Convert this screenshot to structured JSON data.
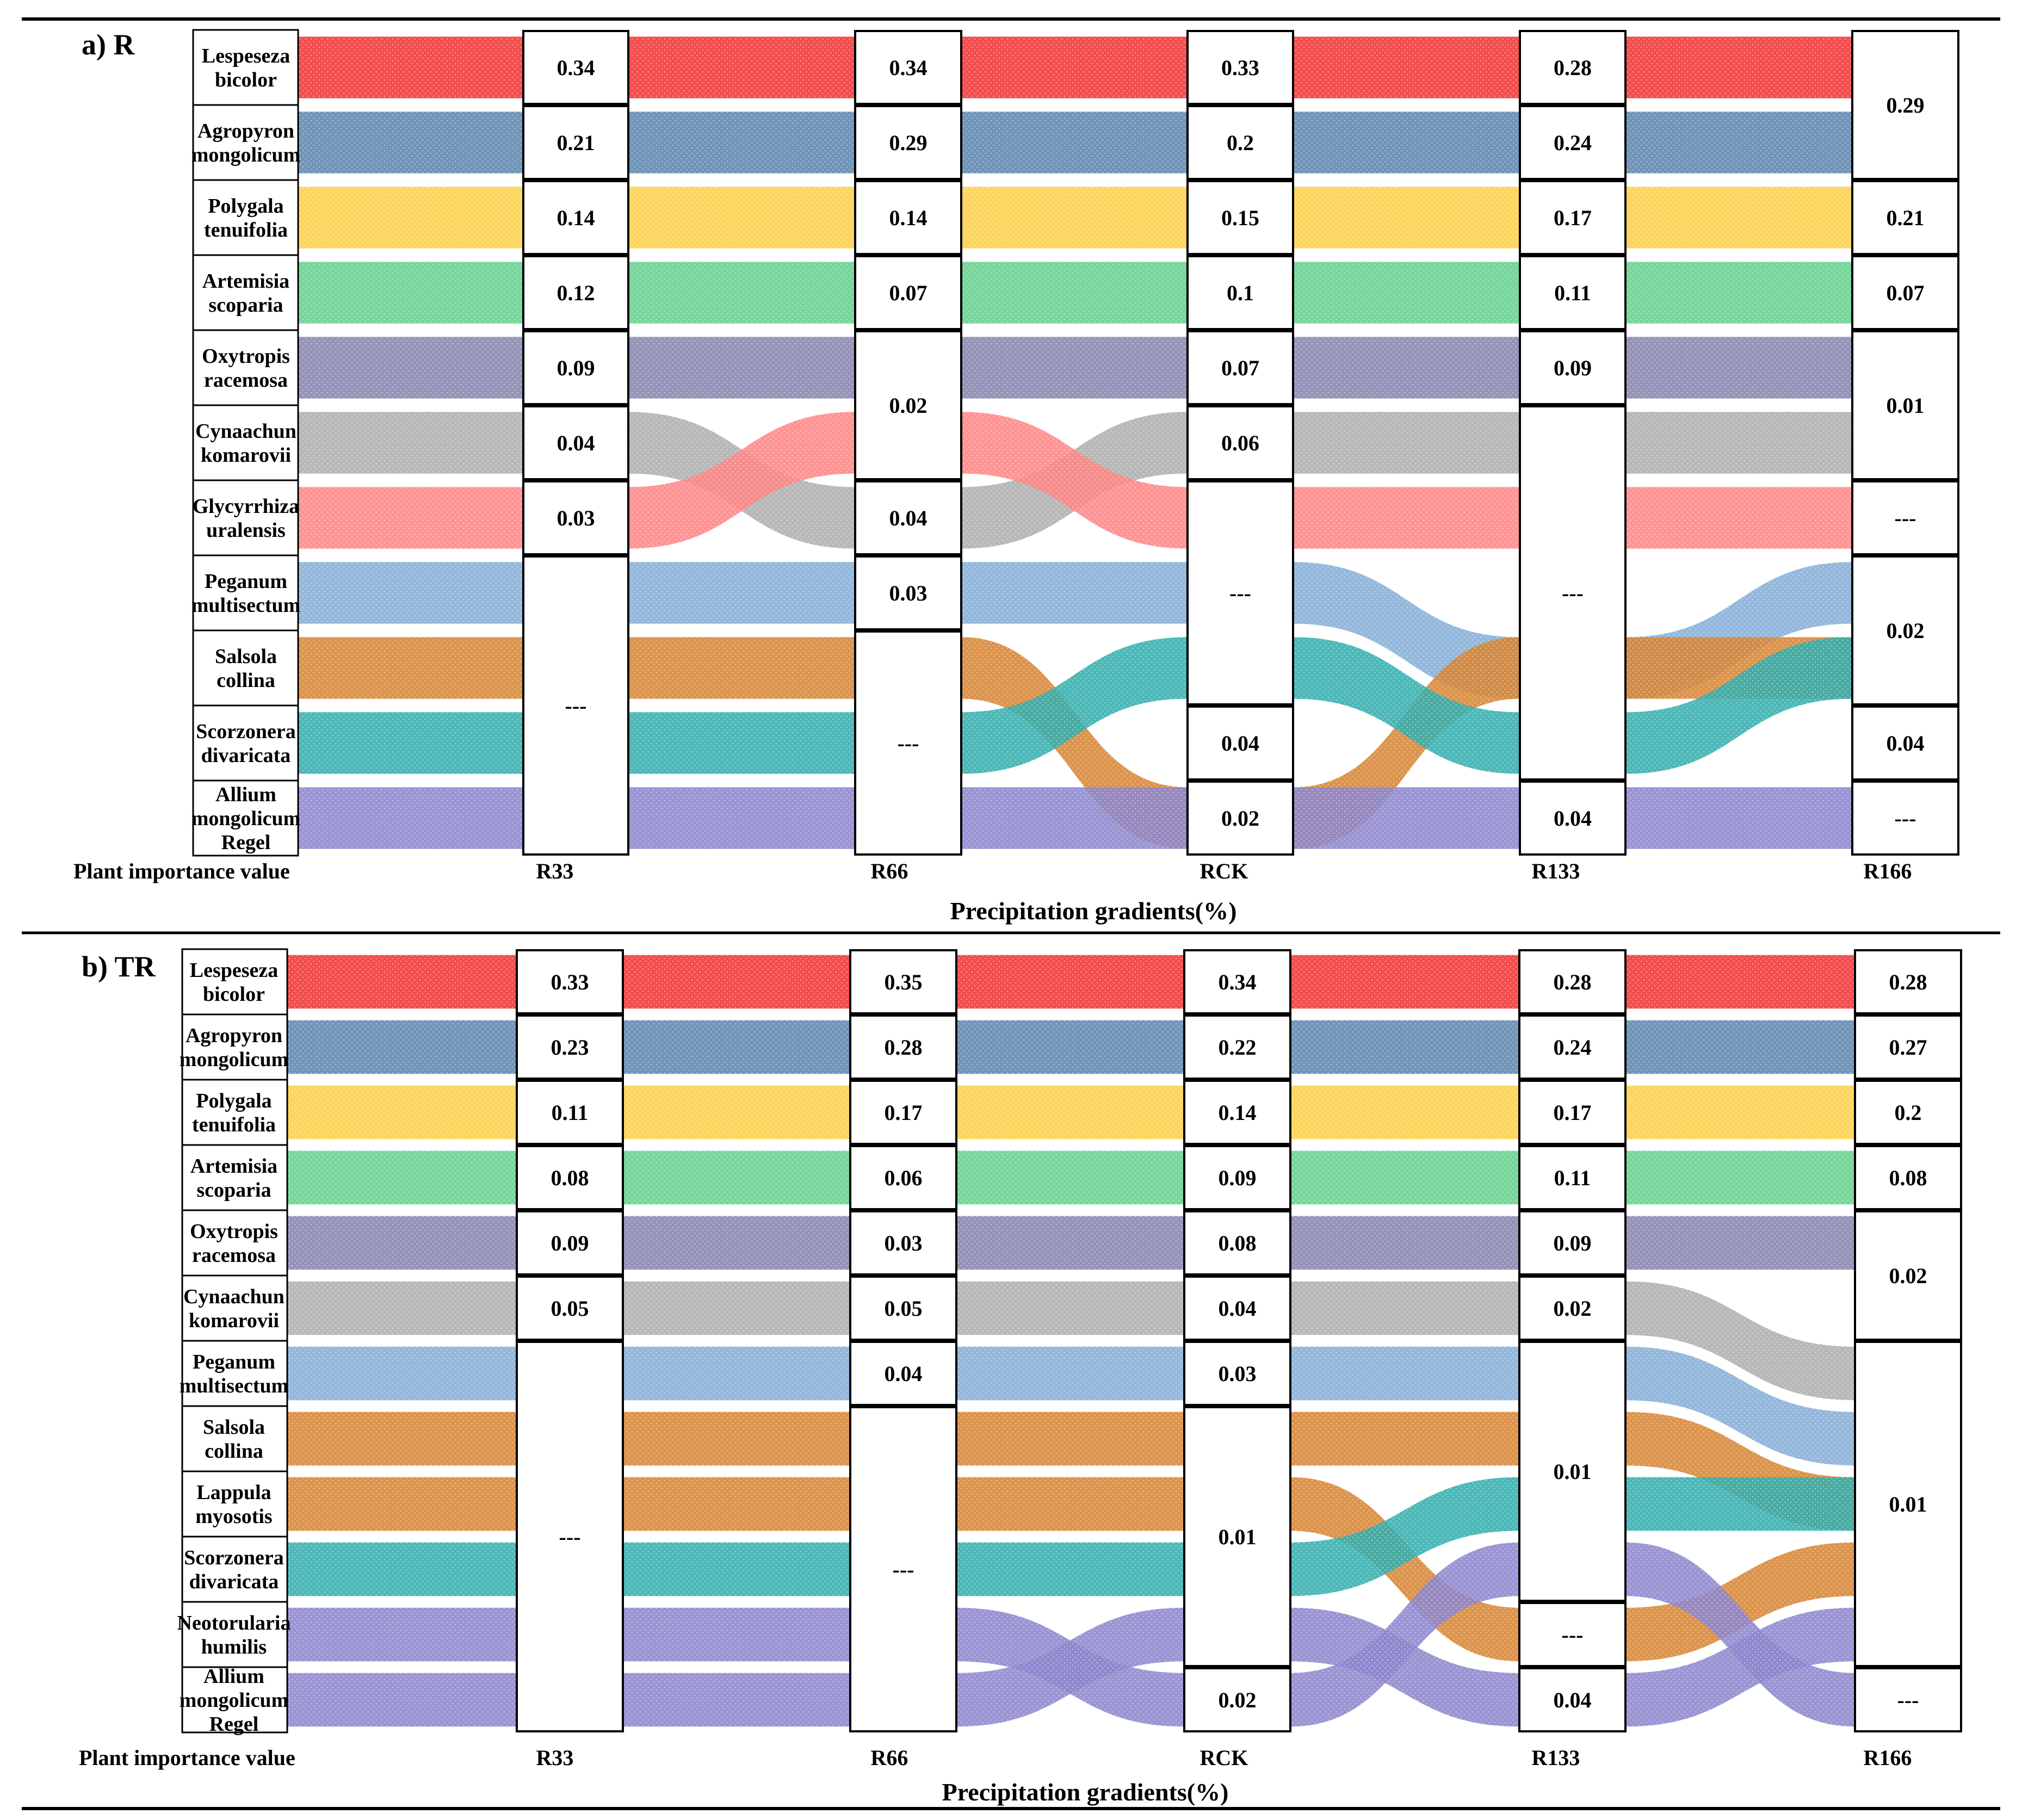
{
  "gradients": [
    "R33",
    "R66",
    "RCK",
    "R133",
    "R166"
  ],
  "row_label": "Plant importance value",
  "x_title": "Precipitation gradients(%)",
  "colors": {
    "Lespeseza bicolor": "#ee0000",
    "Agropyron mongolicum": "#33679a",
    "Polygala tenuifolia": "#fcc317",
    "Artemisia scoparia": "#3cc46f",
    "Oxytropis racemosa": "#66669a",
    "Cynaachun komarovii": "#999999",
    "Glycyrrhiza uralensis": "#ff6666",
    "Peganum multisectum": "#6699cc",
    "Salsola collina": "#cc6600",
    "Scorzonera divaricata": "#009999",
    "Allium mongolicum Regel": "#6f67bf",
    "Lappula myosotis": "#cc6600",
    "Neotorularia humilis": "#6f67bf"
  },
  "panels": [
    {
      "label": "a) R",
      "species": [
        {
          "line1": "Lespeseza",
          "line2": "bicolor",
          "line3": ""
        },
        {
          "line1": "Agropyron",
          "line2": "mongolicum",
          "line3": ""
        },
        {
          "line1": "Polygala",
          "line2": "tenuifolia",
          "line3": ""
        },
        {
          "line1": "Artemisia",
          "line2": "scoparia",
          "line3": ""
        },
        {
          "line1": "Oxytropis",
          "line2": "racemosa",
          "line3": ""
        },
        {
          "line1": "Cynaachun",
          "line2": "komarovii",
          "line3": ""
        },
        {
          "line1": "Glycyrrhiza",
          "line2": "uralensis",
          "line3": ""
        },
        {
          "line1": "Peganum",
          "line2": "multisectum",
          "line3": ""
        },
        {
          "line1": "Salsola",
          "line2": "collina",
          "line3": ""
        },
        {
          "line1": "Scorzonera",
          "line2": "divaricata",
          "line3": ""
        },
        {
          "line1": "Allium",
          "line2": "mongolicum",
          "line3": "Regel"
        }
      ],
      "columns": [
        {
          "cells": [
            {
              "text": "0.34",
              "span": 1
            },
            {
              "text": "0.21",
              "span": 1
            },
            {
              "text": "0.14",
              "span": 1
            },
            {
              "text": "0.12",
              "span": 1
            },
            {
              "text": "0.09",
              "span": 1
            },
            {
              "text": "0.04",
              "span": 1
            },
            {
              "text": "0.03",
              "span": 1
            },
            {
              "text": "---",
              "span": 4
            }
          ]
        },
        {
          "cells": [
            {
              "text": "0.34",
              "span": 1
            },
            {
              "text": "0.29",
              "span": 1
            },
            {
              "text": "0.14",
              "span": 1
            },
            {
              "text": "0.07",
              "span": 1
            },
            {
              "text": "0.02",
              "span": 2
            },
            {
              "text": "0.04",
              "span": 1
            },
            {
              "text": "0.03",
              "span": 1
            },
            {
              "text": "---",
              "span": 3
            }
          ]
        },
        {
          "cells": [
            {
              "text": "0.33",
              "span": 1
            },
            {
              "text": "0.2",
              "span": 1
            },
            {
              "text": "0.15",
              "span": 1
            },
            {
              "text": "0.1",
              "span": 1
            },
            {
              "text": "0.07",
              "span": 1
            },
            {
              "text": "0.06",
              "span": 1
            },
            {
              "text": "---",
              "span": 3
            },
            {
              "text": "0.04",
              "span": 1
            },
            {
              "text": "0.02",
              "span": 1
            }
          ]
        },
        {
          "cells": [
            {
              "text": "0.28",
              "span": 1
            },
            {
              "text": "0.24",
              "span": 1
            },
            {
              "text": "0.17",
              "span": 1
            },
            {
              "text": "0.11",
              "span": 1
            },
            {
              "text": "0.09",
              "span": 1
            },
            {
              "text": "---",
              "span": 5
            },
            {
              "text": "0.04",
              "span": 1
            }
          ]
        },
        {
          "cells": [
            {
              "text": "0.29",
              "span": 2
            },
            {
              "text": "0.21",
              "span": 1
            },
            {
              "text": "0.07",
              "span": 1
            },
            {
              "text": "0.01",
              "span": 2
            },
            {
              "text": "---",
              "span": 1
            },
            {
              "text": "0.02",
              "span": 2
            },
            {
              "text": "0.04",
              "span": 1
            },
            {
              "text": "---",
              "span": 1
            }
          ]
        }
      ]
    },
    {
      "label": "b) TR",
      "species": [
        {
          "line1": "Lespeseza",
          "line2": "bicolor",
          "line3": ""
        },
        {
          "line1": "Agropyron",
          "line2": "mongolicum",
          "line3": ""
        },
        {
          "line1": "Polygala",
          "line2": "tenuifolia",
          "line3": ""
        },
        {
          "line1": "Artemisia",
          "line2": "scoparia",
          "line3": ""
        },
        {
          "line1": "Oxytropis",
          "line2": "racemosa",
          "line3": ""
        },
        {
          "line1": "Cynaachun",
          "line2": "komarovii",
          "line3": ""
        },
        {
          "line1": "Peganum",
          "line2": "multisectum",
          "line3": ""
        },
        {
          "line1": "Salsola",
          "line2": "collina",
          "line3": ""
        },
        {
          "line1": "Lappula",
          "line2": "myosotis",
          "line3": ""
        },
        {
          "line1": "Scorzonera",
          "line2": "divaricata",
          "line3": ""
        },
        {
          "line1": "Neotorularia",
          "line2": "humilis",
          "line3": ""
        },
        {
          "line1": "Allium",
          "line2": "mongolicum",
          "line3": "Regel"
        }
      ],
      "columns": [
        {
          "cells": [
            {
              "text": "0.33",
              "span": 1
            },
            {
              "text": "0.23",
              "span": 1
            },
            {
              "text": "0.11",
              "span": 1
            },
            {
              "text": "0.08",
              "span": 1
            },
            {
              "text": "0.09",
              "span": 1
            },
            {
              "text": "0.05",
              "span": 1
            },
            {
              "text": "---",
              "span": 6
            }
          ]
        },
        {
          "cells": [
            {
              "text": "0.35",
              "span": 1
            },
            {
              "text": "0.28",
              "span": 1
            },
            {
              "text": "0.17",
              "span": 1
            },
            {
              "text": "0.06",
              "span": 1
            },
            {
              "text": "0.03",
              "span": 1
            },
            {
              "text": "0.05",
              "span": 1
            },
            {
              "text": "0.04",
              "span": 1
            },
            {
              "text": "---",
              "span": 5
            }
          ]
        },
        {
          "cells": [
            {
              "text": "0.34",
              "span": 1
            },
            {
              "text": "0.22",
              "span": 1
            },
            {
              "text": "0.14",
              "span": 1
            },
            {
              "text": "0.09",
              "span": 1
            },
            {
              "text": "0.08",
              "span": 1
            },
            {
              "text": "0.04",
              "span": 1
            },
            {
              "text": "0.03",
              "span": 1
            },
            {
              "text": "0.01",
              "span": 4
            },
            {
              "text": "0.02",
              "span": 1
            }
          ]
        },
        {
          "cells": [
            {
              "text": "0.28",
              "span": 1
            },
            {
              "text": "0.24",
              "span": 1
            },
            {
              "text": "0.17",
              "span": 1
            },
            {
              "text": "0.11",
              "span": 1
            },
            {
              "text": "0.09",
              "span": 1
            },
            {
              "text": "0.02",
              "span": 1
            },
            {
              "text": "0.01",
              "span": 4
            },
            {
              "text": "---",
              "span": 1
            },
            {
              "text": "0.04",
              "span": 1
            }
          ]
        },
        {
          "cells": [
            {
              "text": "0.28",
              "span": 1
            },
            {
              "text": "0.27",
              "span": 1
            },
            {
              "text": "0.2",
              "span": 1
            },
            {
              "text": "0.08",
              "span": 1
            },
            {
              "text": "0.02",
              "span": 2
            },
            {
              "text": "0.01",
              "span": 5
            },
            {
              "text": "---",
              "span": 1
            }
          ]
        }
      ]
    }
  ],
  "flows_a": [
    {
      "species": "Lespeseza bicolor",
      "path": [
        0,
        0,
        0,
        0,
        0
      ]
    },
    {
      "species": "Agropyron mongolicum",
      "path": [
        1,
        1,
        1,
        1,
        1
      ]
    },
    {
      "species": "Polygala tenuifolia",
      "path": [
        2,
        2,
        2,
        2,
        2
      ]
    },
    {
      "species": "Artemisia scoparia",
      "path": [
        3,
        3,
        3,
        3,
        3
      ]
    },
    {
      "species": "Oxytropis racemosa",
      "path": [
        4,
        4,
        4,
        4,
        4
      ]
    },
    {
      "species": "Cynaachun komarovii",
      "path": [
        5,
        6,
        5,
        5,
        5
      ]
    },
    {
      "species": "Glycyrrhiza uralensis",
      "path": [
        6,
        5,
        6,
        6,
        6
      ]
    },
    {
      "species": "Peganum multisectum",
      "path": [
        7,
        7,
        7,
        8,
        7
      ]
    },
    {
      "species": "Salsola collina",
      "path": [
        8,
        8,
        10,
        8,
        8
      ]
    },
    {
      "species": "Scorzonera divaricata",
      "path": [
        9,
        9,
        8,
        9,
        8
      ]
    },
    {
      "species": "Allium mongolicum Regel",
      "path": [
        10,
        10,
        10,
        10,
        10
      ]
    }
  ],
  "flows_b": [
    {
      "species": "Lespeseza bicolor",
      "path": [
        0,
        0,
        0,
        0,
        0
      ]
    },
    {
      "species": "Agropyron mongolicum",
      "path": [
        1,
        1,
        1,
        1,
        1
      ]
    },
    {
      "species": "Polygala tenuifolia",
      "path": [
        2,
        2,
        2,
        2,
        2
      ]
    },
    {
      "species": "Artemisia scoparia",
      "path": [
        3,
        3,
        3,
        3,
        3
      ]
    },
    {
      "species": "Oxytropis racemosa",
      "path": [
        4,
        4,
        4,
        4,
        4
      ]
    },
    {
      "species": "Cynaachun komarovii",
      "path": [
        5,
        5,
        5,
        5,
        6
      ]
    },
    {
      "species": "Peganum multisectum",
      "path": [
        6,
        6,
        6,
        6,
        7
      ]
    },
    {
      "species": "Salsola collina",
      "path": [
        7,
        7,
        7,
        7,
        8
      ]
    },
    {
      "species": "Lappula myosotis",
      "path": [
        8,
        8,
        8,
        10,
        9
      ]
    },
    {
      "species": "Scorzonera divaricata",
      "path": [
        9,
        9,
        9,
        8,
        8
      ]
    },
    {
      "species": "Neotorularia humilis",
      "path": [
        10,
        10,
        11,
        9,
        11
      ]
    },
    {
      "species": "Allium mongolicum Regel",
      "path": [
        11,
        11,
        10,
        11,
        10
      ]
    }
  ]
}
